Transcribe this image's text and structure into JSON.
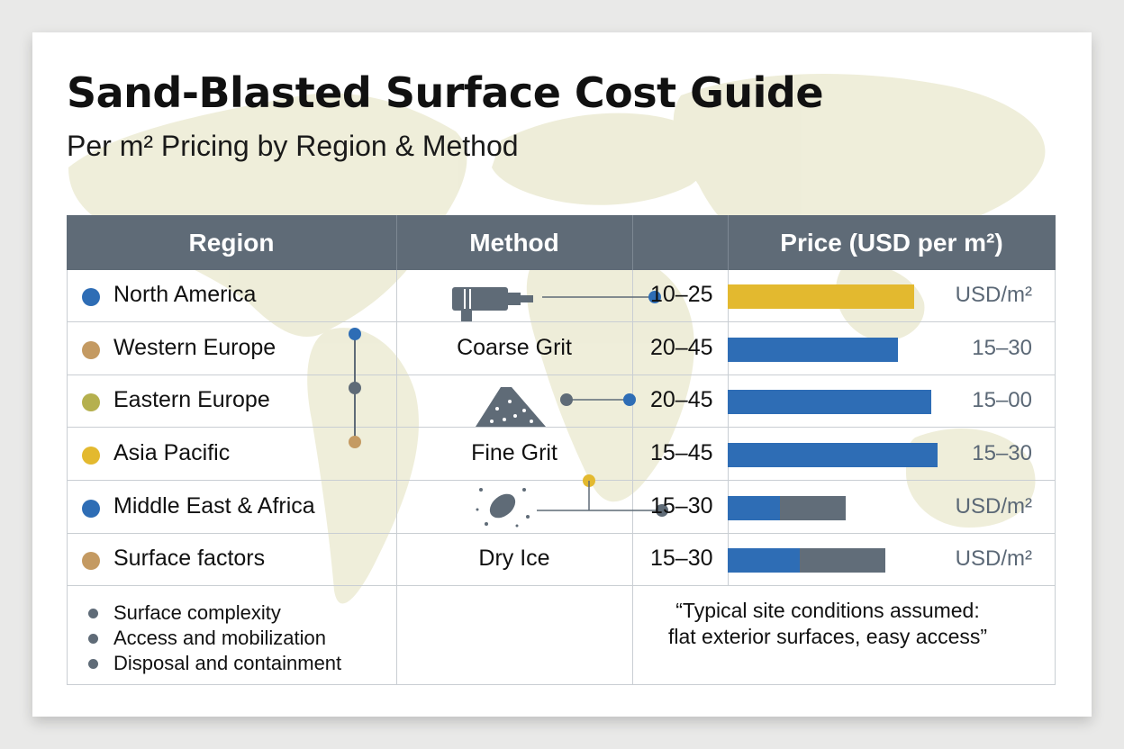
{
  "title": "Sand-Blasted Surface Cost Guide",
  "subtitle": "Per m² Pricing by Region & Method",
  "headers": {
    "region": "Region",
    "method": "Method",
    "price": "Price (USD per m²)"
  },
  "regions": [
    {
      "name": "North America",
      "color": "#2e6db5"
    },
    {
      "name": "Western Europe",
      "color": "#c49a62"
    },
    {
      "name": "Eastern Europe",
      "color": "#b5b04e"
    },
    {
      "name": "Asia Pacific",
      "color": "#e3b92f"
    },
    {
      "name": "Middle East & Africa",
      "color": "#2e6db5"
    },
    {
      "name": "Surface factors",
      "color": "#c49a62"
    }
  ],
  "methods": [
    {
      "label": "Coarse Grit",
      "icon": "sandblast-nozzle-icon"
    },
    {
      "label": "Fine Grit",
      "icon": "grit-pile-icon"
    },
    {
      "label": "Dry Ice",
      "icon": "dry-ice-pellet-icon"
    }
  ],
  "prices": [
    {
      "range": "10–25",
      "unit": "USD/m²",
      "bar_fraction": 0.57,
      "bar_color": "#e3b92f"
    },
    {
      "range": "20–45",
      "unit": "15–30",
      "bar_fraction": 0.52,
      "bar_color": "#2e6db5"
    },
    {
      "range": "20–45",
      "unit": "15–00",
      "bar_fraction": 0.62,
      "bar_color": "#2e6db5"
    },
    {
      "range": "15–45",
      "unit": "15–30",
      "bar_fraction": 0.64,
      "bar_color": "#2e6db5"
    },
    {
      "range": "15–30",
      "unit": "USD/m²",
      "bar_fraction": 0.36,
      "bar_color": "#2e6db5",
      "split_fraction": 0.16
    },
    {
      "range": "15–30",
      "unit": "USD/m²",
      "bar_fraction": 0.48,
      "bar_color": "#2e6db5",
      "split_fraction": 0.22
    }
  ],
  "factors": [
    "Surface complexity",
    "Access and mobilization",
    "Disposal and containment"
  ],
  "note": "“Typical site conditions assumed: flat exterior surfaces, easy access”",
  "colors": {
    "header_bg": "#5f6b77",
    "gray_bar": "#616d79",
    "map_land": "#ecebd3",
    "connector": "#5f6b77"
  }
}
